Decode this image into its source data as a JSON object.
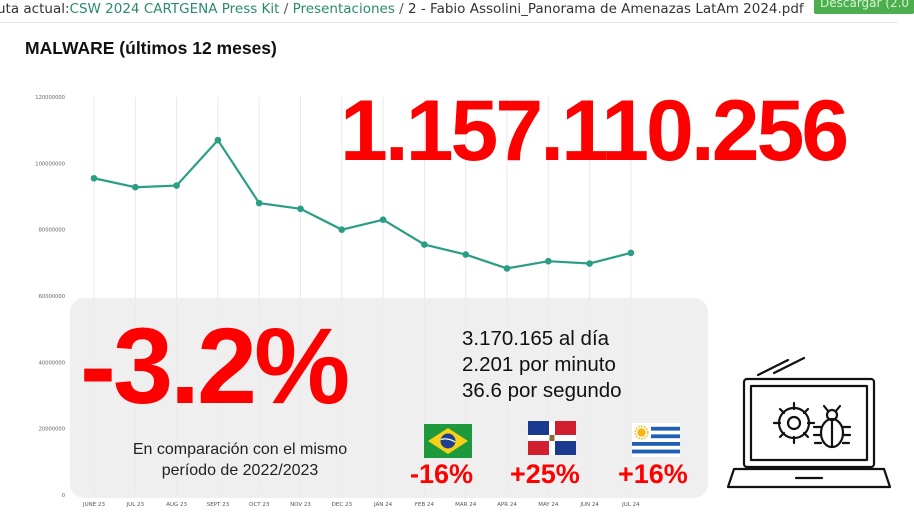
{
  "breadcrumb": {
    "prefix": "uta actual:",
    "items": [
      "CSW 2024 CARTGENA Press Kit",
      "Presentaciones"
    ],
    "current": "2 - Fabio Assolini_Panorama de Amenazas LatAm 2024.pdf",
    "separator": " / "
  },
  "download_button": {
    "label": "Descargar (2.0"
  },
  "slide": {
    "title": "MALWARE (últimos 12 meses)",
    "total": "1.157.110.256",
    "change": "-3.2%",
    "stats": [
      "3.170.165 al día",
      "2.201 por minuto",
      "36.6 por segundo"
    ],
    "comparison": "En comparación con el mismo período de 2022/2023",
    "countries": [
      {
        "icon": "brazil-flag-icon",
        "change": "-16%"
      },
      {
        "icon": "dominican-republic-flag-icon",
        "change": "+25%"
      },
      {
        "icon": "uruguay-flag-icon",
        "change": "+16%"
      }
    ],
    "illustration": "laptop-bug-gear-icon",
    "colors": {
      "line": "#2a9d85",
      "accent": "#ff0000",
      "panel": "#ececec"
    }
  },
  "chart_data": {
    "type": "line",
    "categories": [
      "JUNE 23",
      "JUL 23",
      "AUG 23",
      "SEPT 23",
      "OCT 23",
      "NOV 23",
      "DEC 23",
      "JAN 24",
      "FEB 24",
      "MAR 24",
      "APR 24",
      "MAY 24",
      "JUN 24",
      "JUL 24"
    ],
    "values": [
      95500000,
      92800000,
      93300000,
      107000000,
      88000000,
      86300000,
      80000000,
      83000000,
      75500000,
      72500000,
      68300000,
      70500000,
      69800000,
      73000000
    ],
    "yticks": [
      "0",
      "20000000",
      "40000000",
      "60000000",
      "80000000",
      "100000000",
      "120000000"
    ],
    "ylim": [
      0,
      120000000
    ],
    "grid": "vertical",
    "title": "MALWARE (últimos 12 meses)",
    "line_color": "#2a9d85"
  }
}
